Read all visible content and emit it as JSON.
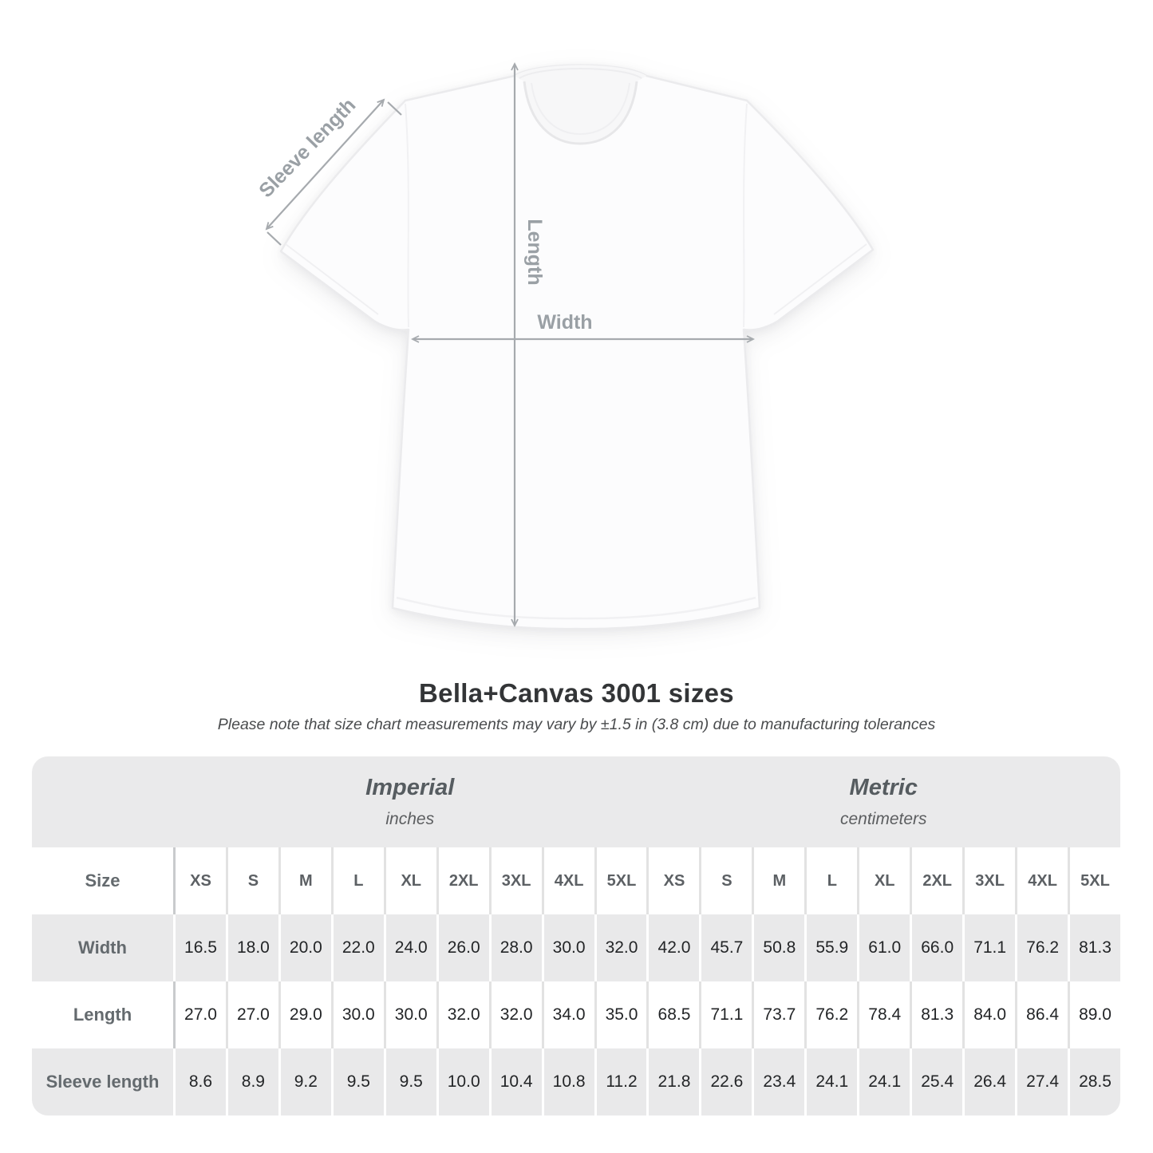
{
  "figure": {
    "sleeve_label": "Sleeve length",
    "length_label": "Length",
    "width_label": "Width",
    "arrow_color": "#a6aaae",
    "label_color": "#9aa0a5"
  },
  "chart_data": {
    "type": "table",
    "title": "Bella+Canvas 3001 sizes",
    "subtitle": "Please note that size chart measurements may vary by ±1.5 in (3.8 cm) due to manufacturing tolerances",
    "groups": [
      {
        "label": "Imperial",
        "unit": "inches"
      },
      {
        "label": "Metric",
        "unit": "centimeters"
      }
    ],
    "size_header": "Size",
    "columns": [
      "XS",
      "S",
      "M",
      "L",
      "XL",
      "2XL",
      "3XL",
      "4XL",
      "5XL",
      "XS",
      "S",
      "M",
      "L",
      "XL",
      "2XL",
      "3XL",
      "4XL",
      "5XL"
    ],
    "rows": [
      {
        "label": "Width",
        "values": [
          "16.5",
          "18.0",
          "20.0",
          "22.0",
          "24.0",
          "26.0",
          "28.0",
          "30.0",
          "32.0",
          "42.0",
          "45.7",
          "50.8",
          "55.9",
          "61.0",
          "66.0",
          "71.1",
          "76.2",
          "81.3"
        ]
      },
      {
        "label": "Length",
        "values": [
          "27.0",
          "27.0",
          "29.0",
          "30.0",
          "30.0",
          "32.0",
          "32.0",
          "34.0",
          "35.0",
          "68.5",
          "71.1",
          "73.7",
          "76.2",
          "78.4",
          "81.3",
          "84.0",
          "86.4",
          "89.0"
        ]
      },
      {
        "label": "Sleeve length",
        "values": [
          "8.6",
          "8.9",
          "9.2",
          "9.5",
          "9.5",
          "10.0",
          "10.4",
          "10.8",
          "11.2",
          "21.8",
          "22.6",
          "23.4",
          "24.1",
          "24.1",
          "25.4",
          "26.4",
          "27.4",
          "28.5"
        ]
      }
    ]
  },
  "colors": {
    "table_band": "#eaeaeb",
    "row_stripe": "#e9e9ea",
    "value_text": "#232527",
    "label_text": "#646a6e",
    "title_text": "#333537"
  }
}
